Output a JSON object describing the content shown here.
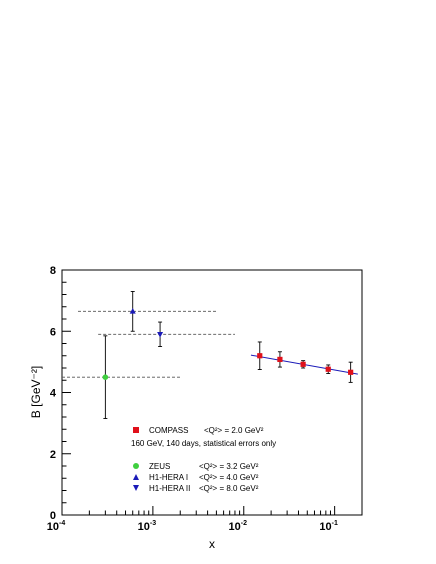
{
  "chart_data": {
    "type": "scatter",
    "xscale": "log",
    "xlim": [
      0.0001,
      0.2
    ],
    "ylim": [
      0,
      8
    ],
    "xlabel": "x",
    "ylabel": "B [GeV⁻²]",
    "x_ticks": [
      {
        "value": 0.0001,
        "base": "10",
        "exp": "-4"
      },
      {
        "value": 0.001,
        "base": "10",
        "exp": "-3"
      },
      {
        "value": 0.01,
        "base": "10",
        "exp": "-2"
      },
      {
        "value": 0.1,
        "base": "10",
        "exp": "-1"
      }
    ],
    "y_ticks": [
      0,
      2,
      4,
      6,
      8
    ],
    "colors": {
      "compass": "#e0101a",
      "zeus": "#3fcf3f",
      "h1": "#1a1ab8",
      "fit": "#1a1ab8"
    },
    "series": [
      {
        "name": "COMPASS",
        "q2_label": "<Q²> = 2.0 GeV²",
        "marker": "square",
        "color": "#e0101a",
        "points": [
          {
            "x": 0.015,
            "y": 5.2,
            "err": 0.45
          },
          {
            "x": 0.025,
            "y": 5.08,
            "err": 0.25
          },
          {
            "x": 0.045,
            "y": 4.92,
            "err": 0.12
          },
          {
            "x": 0.085,
            "y": 4.76,
            "err": 0.14
          },
          {
            "x": 0.15,
            "y": 4.66,
            "err": 0.33
          }
        ]
      },
      {
        "name": "ZEUS",
        "q2_label": "<Q²> = 3.2 GeV²",
        "marker": "circle",
        "color": "#3fcf3f",
        "points": [
          {
            "x": 0.0003,
            "y": 4.5,
            "err": 1.35,
            "xrange": [
              5e-05,
              0.002
            ]
          }
        ]
      },
      {
        "name": "H1-HERA I",
        "q2_label": "<Q²> = 4.0 GeV²",
        "marker": "triangle-up",
        "color": "#1a1ab8",
        "points": [
          {
            "x": 0.0006,
            "y": 6.65,
            "err": 0.65,
            "xrange": [
              0.00015,
              0.005
            ]
          }
        ]
      },
      {
        "name": "H1-HERA II",
        "q2_label": "<Q²> = 8.0 GeV²",
        "marker": "triangle-down",
        "color": "#1a1ab8",
        "points": [
          {
            "x": 0.0012,
            "y": 5.9,
            "err": 0.4,
            "xrange": [
              0.00025,
              0.008
            ]
          }
        ]
      }
    ],
    "fit_line": {
      "x": [
        0.012,
        0.18
      ],
      "y": [
        5.22,
        4.6
      ]
    },
    "legend": {
      "compass": {
        "name": "COMPASS",
        "q2": "<Q²> = 2.0 GeV²",
        "note": "160 GeV, 140 days, statistical errors only"
      },
      "zeus": {
        "name": "ZEUS",
        "q2": "<Q²> = 3.2 GeV²"
      },
      "h1_1": {
        "name": "H1-HERA I",
        "q2": "<Q²> = 4.0 GeV²"
      },
      "h1_2": {
        "name": "H1-HERA II",
        "q2": "<Q²> = 8.0 GeV²"
      }
    }
  }
}
